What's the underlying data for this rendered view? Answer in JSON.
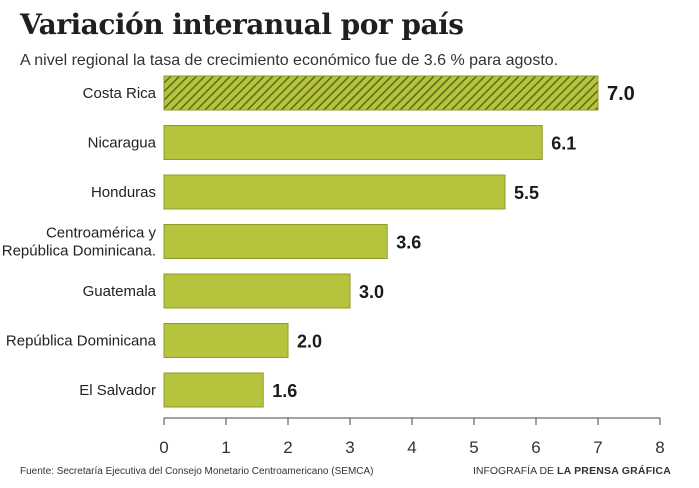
{
  "title": "Variación interanual por país",
  "subtitle": "A nivel regional la tasa de crecimiento económico fue de 3.6 % para agosto.",
  "colors": {
    "bar": "#b5c43c",
    "bar_border": "#8e9a2a",
    "highlight_hatch": "#5d6918",
    "axis": "#444444"
  },
  "chart_data": {
    "type": "bar",
    "orientation": "horizontal",
    "categories": [
      "Costa Rica",
      "Nicaragua",
      "Honduras",
      "Centroamérica y\nRepública Dominicana.",
      "Guatemala",
      "República Dominicana",
      "El Salvador"
    ],
    "values": [
      7.0,
      6.1,
      5.5,
      3.6,
      3.0,
      2.0,
      1.6
    ],
    "value_labels": [
      "7.0",
      "6.1",
      "5.5",
      "3.6",
      "3.0",
      "2.0",
      "1.6"
    ],
    "highlight": "Costa Rica",
    "xlim": [
      0,
      8
    ],
    "xticks": [
      "0",
      "1",
      "2",
      "3",
      "4",
      "5",
      "6",
      "7",
      "8"
    ],
    "grid": false,
    "title": "Variación interanual por país"
  },
  "footer": {
    "source": "Fuente:  Secretaría Ejecutiva del Consejo Monetario Centroamericano (SEMCA)",
    "credit_prefix": "INFOGRAFÍA DE ",
    "credit_brand": "LA PRENSA GRÁFICA"
  }
}
